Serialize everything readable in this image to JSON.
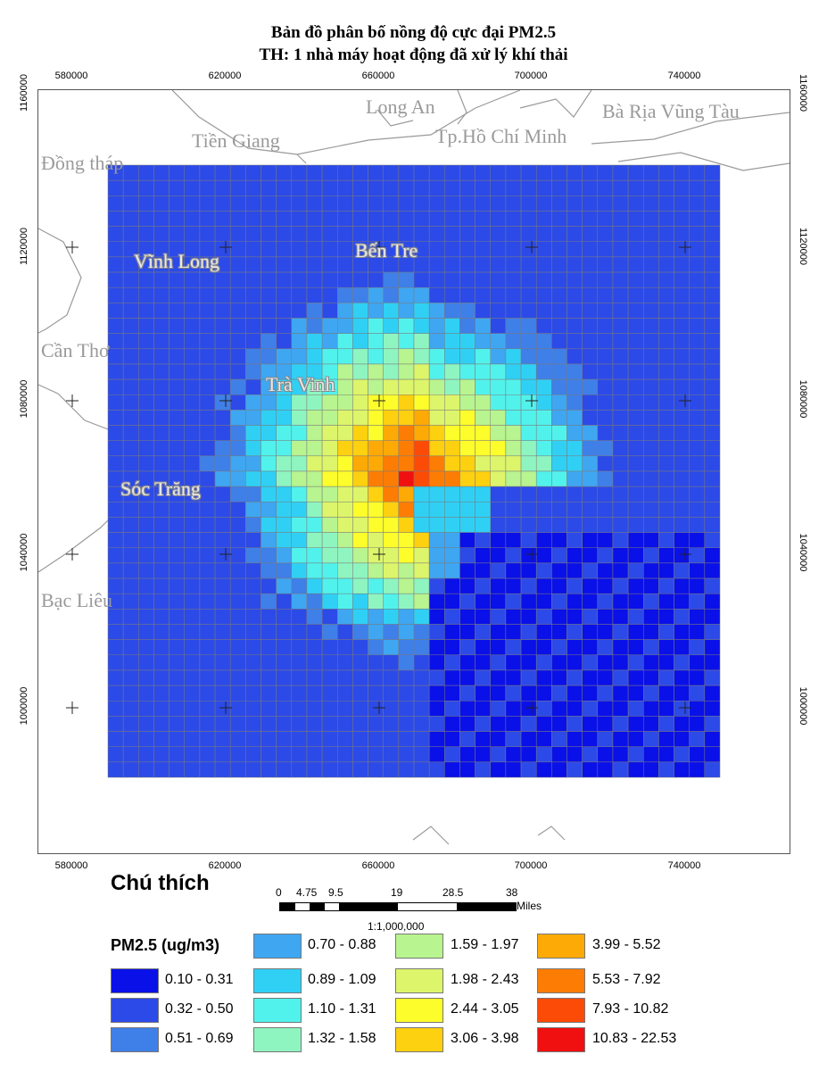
{
  "title": {
    "line1": "Bản đồ phân bố nồng độ cực đại PM2.5",
    "line2": "TH: 1 nhà máy hoạt động đã xử lý khí thải"
  },
  "axes": {
    "x_ticks": [
      "580000",
      "620000",
      "660000",
      "700000",
      "740000"
    ],
    "y_ticks": [
      "1160000",
      "1120000",
      "1080000",
      "1040000",
      "1000000"
    ]
  },
  "places": [
    {
      "id": "long-an",
      "text": "Long An",
      "halo": false
    },
    {
      "id": "ba-ria-vung-tau",
      "text": "Bà Rịa Vũng Tàu",
      "halo": false
    },
    {
      "id": "tien-giang",
      "text": "Tiền Giang",
      "halo": false
    },
    {
      "id": "tp-ho-chi-minh",
      "text": "Tp.Hồ Chí Minh",
      "halo": false
    },
    {
      "id": "dong-thap",
      "text": "Đồng tháp",
      "halo": false
    },
    {
      "id": "vinh-long",
      "text": "Vĩnh Long",
      "halo": true
    },
    {
      "id": "ben-tre",
      "text": "Bến Tre",
      "halo": true
    },
    {
      "id": "can-tho",
      "text": "Cần Thơ",
      "halo": false
    },
    {
      "id": "tra-vinh",
      "text": "Trà Vinh",
      "halo": true
    },
    {
      "id": "soc-trang",
      "text": "Sóc Trăng",
      "halo": true
    },
    {
      "id": "bac-lieu",
      "text": "Bạc Liêu",
      "halo": false
    }
  ],
  "legend": {
    "title": "Chú thích",
    "variable": "PM2.5 (ug/m3)",
    "classes": [
      {
        "label": "0.10 - 0.31",
        "color": "#0a10e8"
      },
      {
        "label": "0.32 - 0.50",
        "color": "#2c4ae8"
      },
      {
        "label": "0.51 - 0.69",
        "color": "#3f7fe8"
      },
      {
        "label": "0.70 - 0.88",
        "color": "#3fa6f2"
      },
      {
        "label": "0.89 - 1.09",
        "color": "#30d0f5"
      },
      {
        "label": "1.10 - 1.31",
        "color": "#52f2ec"
      },
      {
        "label": "1.32 - 1.58",
        "color": "#8ff5c0"
      },
      {
        "label": "1.59 - 1.97",
        "color": "#b8f48f"
      },
      {
        "label": "1.98 - 2.43",
        "color": "#ddf56a"
      },
      {
        "label": "2.44 - 3.05",
        "color": "#fdfd2b"
      },
      {
        "label": "3.06 - 3.98",
        "color": "#fdd010"
      },
      {
        "label": "3.99 - 5.52",
        "color": "#fdaa06"
      },
      {
        "label": "5.53 - 7.92",
        "color": "#fd7d04"
      },
      {
        "label": "7.93 - 10.82",
        "color": "#fc4b06"
      },
      {
        "label": "10.83 - 22.53",
        "color": "#f01010"
      }
    ]
  },
  "scalebar": {
    "labels": [
      "0",
      "4.75",
      "9.5",
      "19",
      "28.5",
      "38"
    ],
    "unit": "Miles",
    "ratio": "1:1,000,000"
  }
}
